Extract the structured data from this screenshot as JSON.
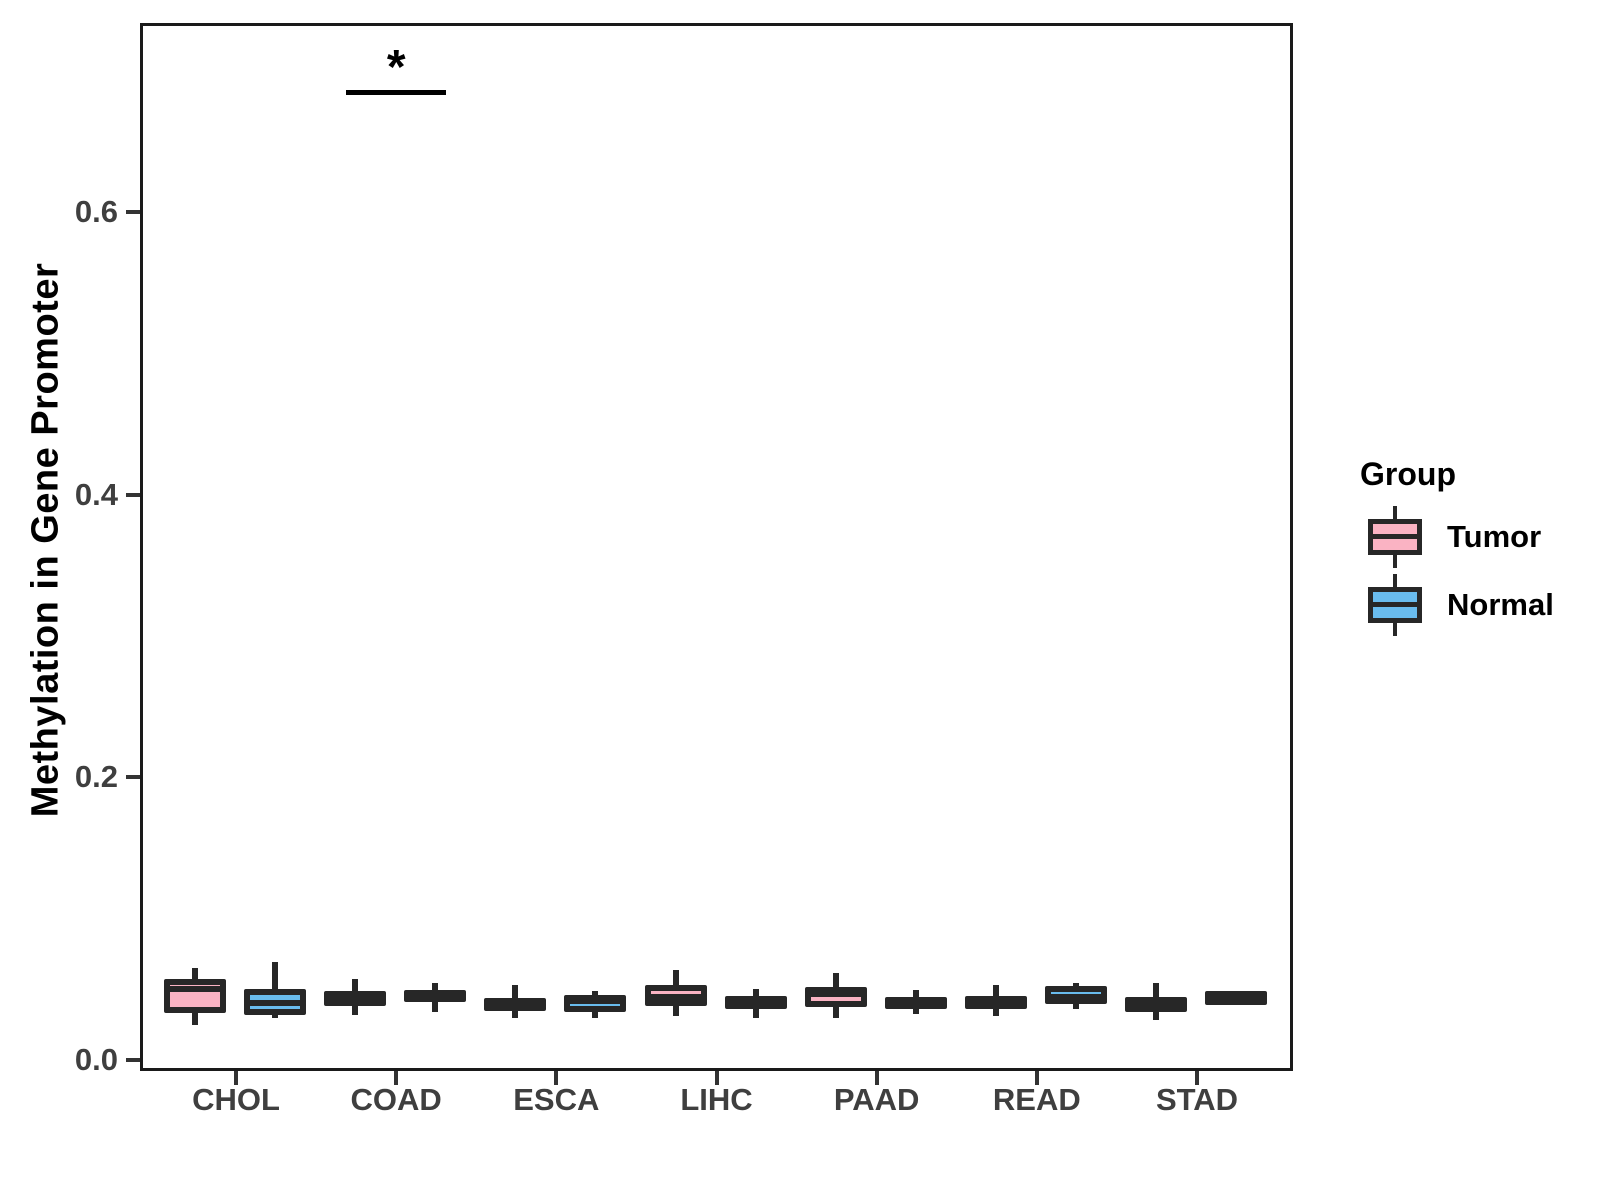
{
  "chart_data": {
    "type": "boxplot",
    "title": "",
    "xlabel": "",
    "ylabel": "Methylation in Gene Promoter",
    "categories": [
      "CHOL",
      "COAD",
      "ESCA",
      "LIHC",
      "PAAD",
      "READ",
      "STAD"
    ],
    "y_ticks": {
      "values": [
        0.0,
        0.2,
        0.4,
        0.6
      ],
      "labels": [
        "0.0",
        "0.2",
        "0.4",
        "0.6"
      ]
    },
    "ylim": [
      -0.008,
      0.734
    ],
    "grid": false,
    "legend": {
      "title": "Group",
      "position": "right"
    },
    "series": [
      {
        "name": "Tumor",
        "fill": "#FAB3C3",
        "boxes": [
          {
            "category": "CHOL",
            "low": 0.025,
            "q1": 0.033,
            "median": 0.05,
            "q3": 0.057,
            "high": 0.065
          },
          {
            "category": "COAD",
            "low": 0.032,
            "q1": 0.038,
            "median": 0.044,
            "q3": 0.049,
            "high": 0.057
          },
          {
            "category": "ESCA",
            "low": 0.03,
            "q1": 0.035,
            "median": 0.04,
            "q3": 0.044,
            "high": 0.053
          },
          {
            "category": "LIHC",
            "low": 0.031,
            "q1": 0.038,
            "median": 0.0445,
            "q3": 0.053,
            "high": 0.064
          },
          {
            "category": "PAAD",
            "low": 0.03,
            "q1": 0.0375,
            "median": 0.047,
            "q3": 0.0515,
            "high": 0.0615
          },
          {
            "category": "READ",
            "low": 0.031,
            "q1": 0.036,
            "median": 0.041,
            "q3": 0.045,
            "high": 0.053
          },
          {
            "category": "STAD",
            "low": 0.028,
            "q1": 0.034,
            "median": 0.039,
            "q3": 0.0445,
            "high": 0.0545
          }
        ]
      },
      {
        "name": "Normal",
        "fill": "#69BCEE",
        "boxes": [
          {
            "category": "CHOL",
            "low": 0.03,
            "q1": 0.032,
            "median": 0.04,
            "q3": 0.05,
            "high": 0.069
          },
          {
            "category": "COAD",
            "low": 0.034,
            "q1": 0.041,
            "median": 0.045,
            "q3": 0.0495,
            "high": 0.0545
          },
          {
            "category": "ESCA",
            "low": 0.03,
            "q1": 0.034,
            "median": 0.0415,
            "q3": 0.046,
            "high": 0.049
          },
          {
            "category": "LIHC",
            "low": 0.03,
            "q1": 0.036,
            "median": 0.041,
            "q3": 0.045,
            "high": 0.05
          },
          {
            "category": "PAAD",
            "low": 0.0325,
            "q1": 0.036,
            "median": 0.04,
            "q3": 0.0445,
            "high": 0.0495
          },
          {
            "category": "READ",
            "low": 0.036,
            "q1": 0.0395,
            "median": 0.0445,
            "q3": 0.052,
            "high": 0.0545
          },
          {
            "category": "STAD",
            "low": 0.047,
            "q1": 0.0465,
            "median": 0.047,
            "q3": 0.0475,
            "high": 0.047
          }
        ]
      }
    ],
    "annotations": [
      {
        "type": "significance",
        "label": "*",
        "category": "COAD",
        "bar_y": 0.685,
        "label_y": 0.702
      }
    ],
    "style": {
      "stroke": "#272727",
      "axis_text_color": "#3F3F3F",
      "axis_title_color": "#000000",
      "panel_border_color": "#1A1A1A",
      "background": "#FFFFFF"
    }
  }
}
